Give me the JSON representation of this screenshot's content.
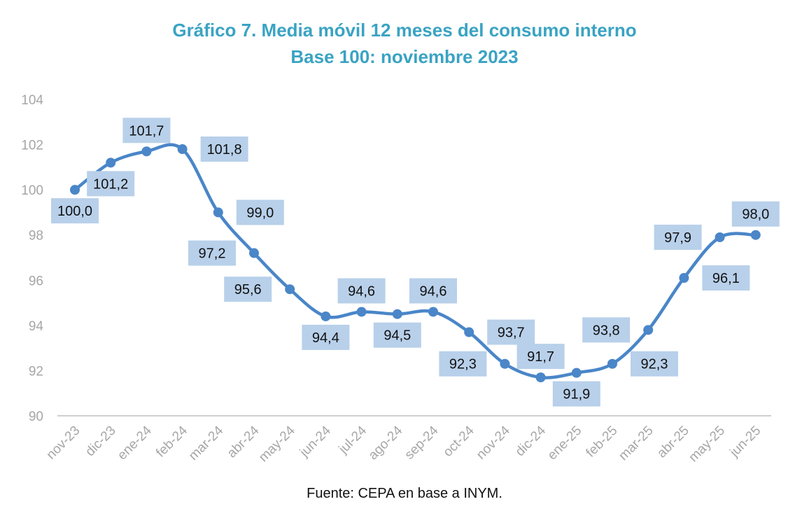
{
  "chart_data": {
    "type": "line",
    "title": "Gráfico 7. Media móvil 12 meses del consumo interno",
    "subtitle": "Base 100: noviembre 2023",
    "source": "Fuente: CEPA en base a INYM.",
    "categories": [
      "nov-23",
      "dic-23",
      "ene-24",
      "feb-24",
      "mar-24",
      "abr-24",
      "may-24",
      "jun-24",
      "jul-24",
      "ago-24",
      "sep-24",
      "oct-24",
      "nov-24",
      "dic-24",
      "ene-25",
      "feb-25",
      "mar-25",
      "abr-25",
      "may-25",
      "jun-25"
    ],
    "series": [
      {
        "values": [
          100.0,
          101.2,
          101.7,
          101.8,
          99.0,
          97.2,
          95.6,
          94.4,
          94.6,
          94.5,
          94.6,
          93.7,
          92.3,
          91.7,
          91.9,
          92.3,
          93.8,
          96.1,
          97.9,
          98.0
        ],
        "data_labels": [
          "100,0",
          "101,2",
          "101,7",
          "101,8",
          "99,0",
          "97,2",
          "95,6",
          "94,4",
          "94,6",
          "94,5",
          "94,6",
          "93,7",
          "92,3",
          "91,7",
          "91,9",
          "92,3",
          "93,8",
          "96,1",
          "97,9",
          "98,0"
        ],
        "label_positions": [
          "below",
          "below",
          "above",
          "right",
          "right",
          "left",
          "left",
          "below",
          "above",
          "below",
          "above",
          "right",
          "left",
          "above",
          "below",
          "right",
          "left",
          "right",
          "left",
          "above"
        ]
      }
    ],
    "ylim": [
      90,
      104
    ],
    "yticks": [
      90,
      92,
      94,
      96,
      98,
      100,
      102,
      104
    ],
    "grid": false,
    "legend": "none",
    "colors": {
      "line": "#4a86c8",
      "marker": "#4a86c8",
      "label_bg": "#b8d0ea",
      "title": "#3aa3c3",
      "axis_text": "#a6a6a6",
      "axis_line": "#bfbfbf"
    }
  }
}
